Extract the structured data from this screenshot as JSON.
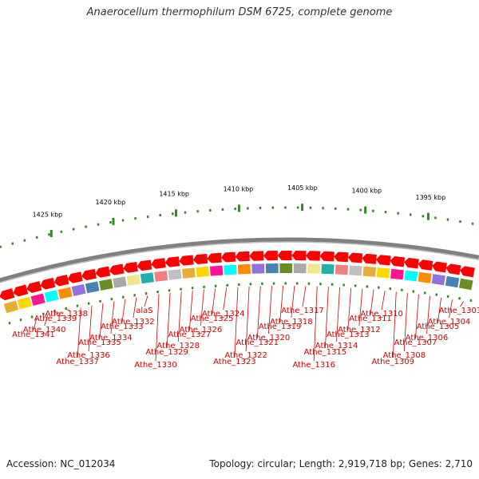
{
  "title": "Anaerocellum thermophilum DSM 6725, complete genome",
  "footer": {
    "accession": "Accession: NC_012034",
    "topology": "Topology: circular; Length: 2,919,718 bp; Genes: 2,710"
  },
  "colors": {
    "backbone": "#808080",
    "tick": "#2e8b20",
    "forward_feature": "#ff0000",
    "label": "#cc0000",
    "cog_colors": [
      "#e6ad37",
      "#ffd700",
      "#ff1493",
      "#00ffff",
      "#ff8c00",
      "#9370db",
      "#4682b4",
      "#6b8e23",
      "#a9a9a9",
      "#f0e68c",
      "#20b2aa",
      "#f08080",
      "#c0c0c0"
    ]
  },
  "scale_labels": [
    {
      "text": "1425 kbp",
      "kbp": 1425
    },
    {
      "text": "1420 kbp",
      "kbp": 1420
    },
    {
      "text": "1415 kbp",
      "kbp": 1415
    },
    {
      "text": "1410 kbp",
      "kbp": 1410
    },
    {
      "text": "1405 kbp",
      "kbp": 1405
    },
    {
      "text": "1400 kbp",
      "kbp": 1400
    },
    {
      "text": "1395 kbp",
      "kbp": 1395
    }
  ],
  "gene_labels": [
    "Athe_1303",
    "Athe_1304",
    "Athe_1305",
    "Athe_1306",
    "Athe_1307",
    "Athe_1308",
    "Athe_1309",
    "Athe_1310",
    "Athe_1311",
    "Athe_1312",
    "Athe_1313",
    "Athe_1314",
    "Athe_1315",
    "Athe_1316",
    "Athe_1317",
    "Athe_1318",
    "Athe_1319",
    "Athe_1320",
    "Athe_1321",
    "Athe_1322",
    "Athe_1323",
    "Athe_1324",
    "Athe_1325",
    "Athe_1326",
    "Athe_1327",
    "Athe_1328",
    "Athe_1329",
    "Athe_1330",
    "alaS",
    "Athe_1332",
    "Athe_1333",
    "Athe_1334",
    "Athe_1335",
    "Athe_1336",
    "Athe_1337",
    "Athe_1338",
    "Athe_1339",
    "Athe_1340",
    "Athe_1341"
  ]
}
